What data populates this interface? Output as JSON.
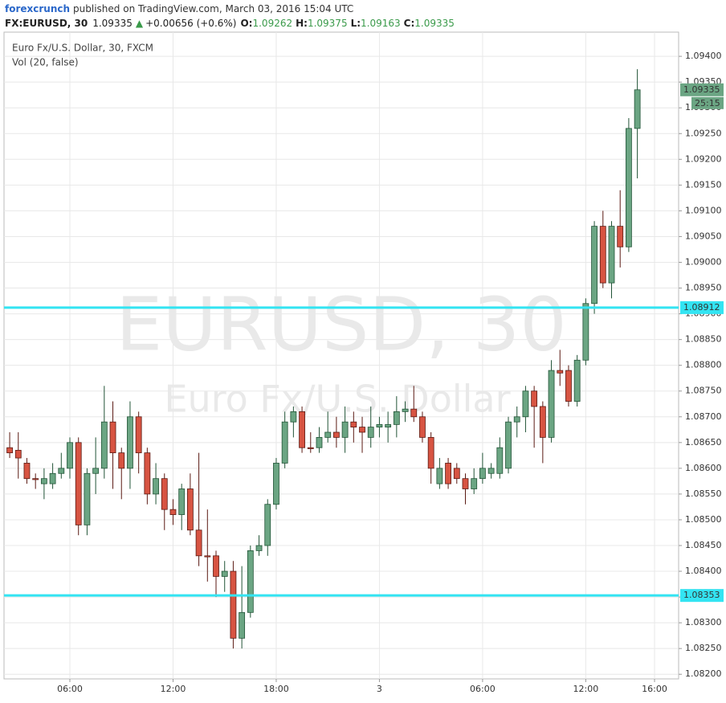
{
  "chart_data": {
    "type": "candlestick",
    "header": {
      "author": "forexcrunch",
      "published": "published on TradingView.com, March 03, 2016 15:04 UTC",
      "symbol": "FX:EURUSD, 30",
      "last": "1.09335",
      "change_arrow": "▲",
      "change": "+0.00656 (+0.6%)",
      "open_label": "O:",
      "open": "1.09262",
      "high_label": "H:",
      "high": "1.09375",
      "low_label": "L:",
      "low": "1.09163",
      "close_label": "C:",
      "close": "1.09335"
    },
    "legend": {
      "series": "Euro Fx/U.S. Dollar, 30, FXCM",
      "volume": "Vol (20, false)"
    },
    "watermark": {
      "symbol": "EURUSD, 30",
      "description": "Euro Fx/U.S. Dollar"
    },
    "up_color": "#6ba583",
    "up_border": "#225437",
    "down_color": "#d75442",
    "down_border": "#5b1a13",
    "grid": true,
    "x": [
      2.5,
      3,
      3.5,
      4,
      4.5,
      5,
      5.5,
      6,
      6.5,
      7,
      7.5,
      8,
      8.5,
      9,
      9.5,
      10,
      10.5,
      11,
      11.5,
      12,
      12.5,
      13,
      13.5,
      14,
      14.5,
      15,
      15.5,
      16,
      16.5,
      17,
      17.5,
      18,
      18.5,
      19,
      19.5,
      20,
      20.5,
      21,
      21.5,
      22,
      22.5,
      23,
      23.5,
      24,
      24.5,
      25,
      25.5,
      26,
      26.5,
      27,
      27.5,
      28,
      28.5,
      29,
      29.5,
      30,
      30.5,
      31,
      31.5,
      32,
      32.5,
      33,
      33.5,
      34,
      34.5,
      35,
      35.5,
      36,
      36.5,
      37,
      37.5,
      38,
      38.5,
      39
    ],
    "open": [
      1.0864,
      1.08635,
      1.0861,
      1.0858,
      1.0857,
      1.0857,
      1.0859,
      1.086,
      1.0865,
      1.0849,
      1.0859,
      1.086,
      1.0869,
      1.0863,
      1.086,
      1.087,
      1.0863,
      1.0855,
      1.0858,
      1.0852,
      1.0851,
      1.0856,
      1.0848,
      1.0843,
      1.0843,
      1.0839,
      1.084,
      1.0827,
      1.0832,
      1.0844,
      1.0845,
      1.0853,
      1.0861,
      1.0869,
      1.0871,
      1.0864,
      1.0864,
      1.0866,
      1.0867,
      1.0866,
      1.0869,
      1.0868,
      1.0866,
      1.0868,
      1.0868,
      1.08685,
      1.0871,
      1.08715,
      1.087,
      1.0866,
      1.0857,
      1.0861,
      1.086,
      1.0858,
      1.0856,
      1.0858,
      1.0859,
      1.0859,
      1.086,
      1.0869,
      1.087,
      1.0875,
      1.0872,
      1.0866,
      1.0879,
      1.0879,
      1.0873,
      1.0881,
      1.0892,
      1.0907,
      1.0896,
      1.0907,
      1.0903,
      1.0926
    ],
    "high": [
      1.0867,
      1.0867,
      1.0862,
      1.0859,
      1.086,
      1.0861,
      1.0863,
      1.0866,
      1.0866,
      1.086,
      1.0866,
      1.0876,
      1.0873,
      1.0864,
      1.0873,
      1.0871,
      1.0864,
      1.0861,
      1.0859,
      1.0854,
      1.0857,
      1.0859,
      1.0863,
      1.0852,
      1.0844,
      1.0842,
      1.0842,
      1.0841,
      1.0845,
      1.0847,
      1.0854,
      1.0862,
      1.0871,
      1.0872,
      1.0872,
      1.0867,
      1.0868,
      1.0871,
      1.087,
      1.0872,
      1.0871,
      1.087,
      1.0872,
      1.087,
      1.0871,
      1.0874,
      1.0873,
      1.0876,
      1.0871,
      1.0867,
      1.0862,
      1.0862,
      1.0861,
      1.0859,
      1.086,
      1.0863,
      1.0861,
      1.0866,
      1.087,
      1.0872,
      1.0876,
      1.0876,
      1.0873,
      1.0881,
      1.0883,
      1.088,
      1.0882,
      1.0893,
      1.0908,
      1.091,
      1.0908,
      1.0914,
      1.0928,
      1.09375
    ],
    "low": [
      1.0862,
      1.0858,
      1.0857,
      1.0856,
      1.0854,
      1.0856,
      1.0858,
      1.0858,
      1.0847,
      1.0847,
      1.0855,
      1.0858,
      1.0856,
      1.0854,
      1.0856,
      1.0859,
      1.0853,
      1.0853,
      1.0848,
      1.0849,
      1.0848,
      1.0847,
      1.0841,
      1.0838,
      1.0835,
      1.0836,
      1.0825,
      1.0825,
      1.0831,
      1.0843,
      1.0843,
      1.0852,
      1.086,
      1.0866,
      1.0863,
      1.0863,
      1.0863,
      1.0865,
      1.0864,
      1.0863,
      1.0865,
      1.0863,
      1.0864,
      1.0866,
      1.0865,
      1.0866,
      1.0869,
      1.0869,
      1.0865,
      1.0857,
      1.0856,
      1.0856,
      1.0857,
      1.0853,
      1.0855,
      1.0857,
      1.0858,
      1.0858,
      1.0859,
      1.0866,
      1.0867,
      1.0864,
      1.0861,
      1.0865,
      1.0876,
      1.0872,
      1.0872,
      1.088,
      1.089,
      1.0895,
      1.0893,
      1.0899,
      1.0902,
      1.09163
    ],
    "close": [
      1.0863,
      1.0862,
      1.0858,
      1.08578,
      1.0858,
      1.0859,
      1.086,
      1.0865,
      1.0849,
      1.0859,
      1.086,
      1.0869,
      1.0863,
      1.086,
      1.087,
      1.0863,
      1.0855,
      1.0858,
      1.0852,
      1.0851,
      1.0856,
      1.0848,
      1.0843,
      1.08428,
      1.0839,
      1.084,
      1.0827,
      1.0832,
      1.0844,
      1.0845,
      1.0853,
      1.0861,
      1.0869,
      1.0871,
      1.0864,
      1.08638,
      1.0866,
      1.0867,
      1.0866,
      1.0869,
      1.0868,
      1.0867,
      1.0868,
      1.08685,
      1.08685,
      1.0871,
      1.08715,
      1.087,
      1.0866,
      1.086,
      1.086,
      1.0857,
      1.0858,
      1.0856,
      1.0858,
      1.086,
      1.086,
      1.0864,
      1.0869,
      1.087,
      1.0875,
      1.0872,
      1.0866,
      1.0879,
      1.08785,
      1.0873,
      1.0881,
      1.0892,
      1.0907,
      1.0896,
      1.0907,
      1.0903,
      1.0926,
      1.09335
    ],
    "xlim": [
      2.17,
      41.4
    ],
    "xticks": [
      {
        "value": 6,
        "label": "06:00"
      },
      {
        "value": 12,
        "label": "12:00"
      },
      {
        "value": 18,
        "label": "18:00"
      },
      {
        "value": 24,
        "label": "3"
      },
      {
        "value": 30,
        "label": "06:00"
      },
      {
        "value": 36,
        "label": "12:00"
      },
      {
        "value": 40,
        "label": "16:00"
      }
    ],
    "ylim": [
      1.08191,
      1.09447
    ],
    "yticks": [
      {
        "value": 1.082,
        "label": "1.08200"
      },
      {
        "value": 1.0825,
        "label": "1.08250"
      },
      {
        "value": 1.083,
        "label": "1.08300"
      },
      {
        "value": 1.0835,
        "label": "1.08350"
      },
      {
        "value": 1.084,
        "label": "1.08400"
      },
      {
        "value": 1.0845,
        "label": "1.08450"
      },
      {
        "value": 1.085,
        "label": "1.08500"
      },
      {
        "value": 1.0855,
        "label": "1.08550"
      },
      {
        "value": 1.086,
        "label": "1.08600"
      },
      {
        "value": 1.0865,
        "label": "1.08650"
      },
      {
        "value": 1.087,
        "label": "1.08700"
      },
      {
        "value": 1.0875,
        "label": "1.08750"
      },
      {
        "value": 1.088,
        "label": "1.08800"
      },
      {
        "value": 1.0885,
        "label": "1.08850"
      },
      {
        "value": 1.089,
        "label": "1.08900"
      },
      {
        "value": 1.0895,
        "label": "1.08950"
      },
      {
        "value": 1.09,
        "label": "1.09000"
      },
      {
        "value": 1.0905,
        "label": "1.09050"
      },
      {
        "value": 1.091,
        "label": "1.09100"
      },
      {
        "value": 1.0915,
        "label": "1.09150"
      },
      {
        "value": 1.092,
        "label": "1.09200"
      },
      {
        "value": 1.0925,
        "label": "1.09250"
      },
      {
        "value": 1.093,
        "label": "1.09300"
      },
      {
        "value": 1.0935,
        "label": "1.09350"
      },
      {
        "value": 1.094,
        "label": "1.09400"
      }
    ],
    "hlines": [
      {
        "value": 1.08912,
        "label": "1.08912"
      },
      {
        "value": 1.08353,
        "label": "1.08353"
      }
    ],
    "hline_color": "#33e4f2",
    "last_price": {
      "value": 1.09335,
      "label": "1.09335"
    },
    "countdown": "25:15"
  }
}
